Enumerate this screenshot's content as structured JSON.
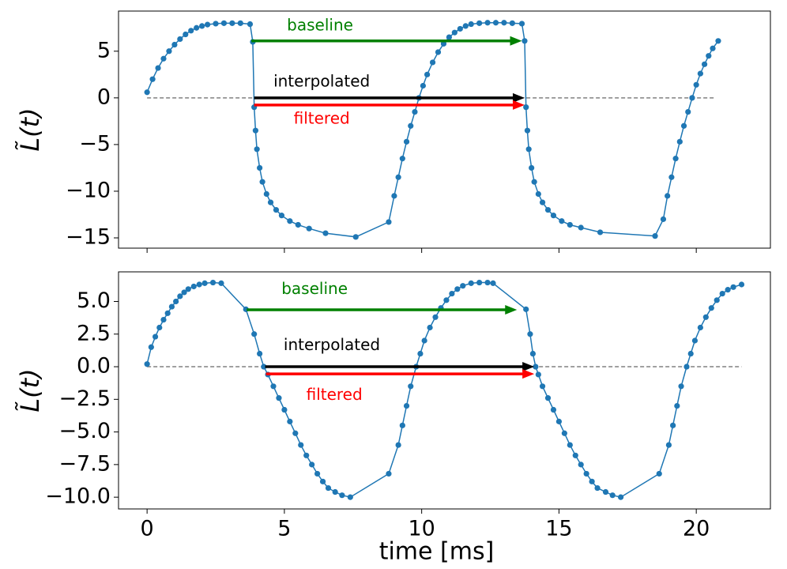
{
  "chart_data": [
    {
      "type": "line",
      "ylabel": "L̃(t)",
      "color": "#1f77b4",
      "x": [
        0,
        0.2,
        0.4,
        0.6,
        0.8,
        1.0,
        1.2,
        1.4,
        1.6,
        1.8,
        2.0,
        2.2,
        2.5,
        2.8,
        3.1,
        3.4,
        3.75,
        3.85,
        3.9,
        3.95,
        4.0,
        4.1,
        4.2,
        4.35,
        4.5,
        4.7,
        4.9,
        5.2,
        5.5,
        5.9,
        6.5,
        7.6,
        8.8,
        9.0,
        9.15,
        9.3,
        9.45,
        9.6,
        9.75,
        9.9,
        10.05,
        10.2,
        10.4,
        10.6,
        10.8,
        11.0,
        11.2,
        11.4,
        11.6,
        11.8,
        12.1,
        12.4,
        12.7,
        13.0,
        13.3,
        13.65,
        13.75,
        13.8,
        13.85,
        13.9,
        14.0,
        14.1,
        14.25,
        14.4,
        14.6,
        14.8,
        15.1,
        15.4,
        15.8,
        16.5,
        18.5,
        18.8,
        18.95,
        19.1,
        19.25,
        19.4,
        19.55,
        19.7,
        19.85,
        20.0,
        20.15,
        20.3,
        20.45,
        20.6,
        20.8
      ],
      "values": [
        0.6,
        2.0,
        3.2,
        4.2,
        5.0,
        5.7,
        6.3,
        6.8,
        7.2,
        7.5,
        7.7,
        7.85,
        7.95,
        8.0,
        8.0,
        8.0,
        7.9,
        6.0,
        -1.0,
        -3.5,
        -5.5,
        -7.5,
        -9.0,
        -10.3,
        -11.2,
        -12.0,
        -12.6,
        -13.2,
        -13.6,
        -14.0,
        -14.5,
        -14.9,
        -13.3,
        -10.5,
        -8.5,
        -6.5,
        -4.7,
        -3.0,
        -1.5,
        0.0,
        1.3,
        2.5,
        3.8,
        4.9,
        5.8,
        6.5,
        7.0,
        7.4,
        7.7,
        7.9,
        8.0,
        8.05,
        8.05,
        8.05,
        8.0,
        7.95,
        6.1,
        -1.0,
        -3.5,
        -5.5,
        -7.5,
        -9.0,
        -10.3,
        -11.2,
        -12.0,
        -12.6,
        -13.2,
        -13.6,
        -13.9,
        -14.4,
        -14.8,
        -13.0,
        -10.5,
        -8.5,
        -6.5,
        -4.7,
        -3.0,
        -1.5,
        0.0,
        1.4,
        2.6,
        3.6,
        4.5,
        5.3,
        6.1
      ],
      "xlim": [
        -1.04,
        22.7
      ],
      "xticks": [
        0,
        5,
        10,
        15,
        20
      ],
      "ylim": [
        -16.1,
        9.3
      ],
      "yticks": [
        {
          "value": 5,
          "label": "5"
        },
        0,
        {
          "value": -5,
          "label": "−5"
        },
        {
          "value": -10,
          "label": "−10"
        },
        {
          "value": -15,
          "label": "−15"
        }
      ],
      "reference_line": {
        "y": 0,
        "xmin": 0,
        "xmax": 20.7,
        "color": "gray"
      },
      "arrows": [
        {
          "text": "baseline",
          "color": "green",
          "start": [
            3.8,
            6.1
          ],
          "end": [
            13.65,
            6.1
          ],
          "text_pos": [
            6.3,
            7.7
          ]
        },
        {
          "text": "interpolated",
          "color": "black",
          "start": [
            3.9,
            0
          ],
          "end": [
            13.75,
            0
          ],
          "text_pos": [
            6.36,
            1.7
          ]
        },
        {
          "text": "filtered",
          "color": "red",
          "start": [
            3.9,
            -0.76
          ],
          "end": [
            13.75,
            -0.76
          ],
          "text_pos": [
            6.36,
            -2.3
          ]
        }
      ]
    },
    {
      "type": "line",
      "ylabel": "L̃(t)",
      "xlabel": "time [ms]",
      "color": "#1f77b4",
      "x": [
        0,
        0.15,
        0.3,
        0.45,
        0.6,
        0.75,
        0.9,
        1.05,
        1.2,
        1.35,
        1.5,
        1.7,
        1.9,
        2.1,
        2.4,
        2.7,
        3.6,
        3.9,
        4.1,
        4.25,
        4.4,
        4.6,
        4.8,
        5.0,
        5.2,
        5.4,
        5.6,
        5.8,
        6.0,
        6.2,
        6.4,
        6.6,
        6.85,
        7.1,
        7.4,
        8.8,
        9.15,
        9.3,
        9.45,
        9.6,
        9.8,
        9.95,
        10.1,
        10.3,
        10.5,
        10.7,
        10.9,
        11.1,
        11.3,
        11.5,
        11.8,
        12.1,
        12.4,
        12.6,
        13.8,
        13.95,
        14.05,
        14.15,
        14.25,
        14.4,
        14.6,
        14.8,
        15.0,
        15.2,
        15.4,
        15.6,
        15.8,
        16.0,
        16.2,
        16.4,
        16.7,
        16.95,
        17.25,
        18.65,
        19.0,
        19.15,
        19.3,
        19.45,
        19.65,
        19.8,
        19.95,
        20.15,
        20.35,
        20.55,
        20.75,
        20.95,
        21.15,
        21.35,
        21.65
      ],
      "values": [
        0.2,
        1.5,
        2.3,
        3.0,
        3.6,
        4.1,
        4.6,
        5.0,
        5.4,
        5.7,
        5.95,
        6.15,
        6.3,
        6.4,
        6.45,
        6.4,
        4.4,
        2.5,
        1.0,
        0.0,
        -0.6,
        -1.5,
        -2.4,
        -3.3,
        -4.2,
        -5.1,
        -6.0,
        -6.8,
        -7.5,
        -8.2,
        -8.8,
        -9.3,
        -9.6,
        -9.85,
        -10.0,
        -8.2,
        -6.0,
        -4.5,
        -3.0,
        -1.5,
        0.0,
        1.0,
        2.0,
        3.0,
        3.8,
        4.5,
        5.1,
        5.6,
        5.95,
        6.2,
        6.4,
        6.45,
        6.45,
        6.4,
        4.4,
        2.5,
        1.0,
        0.0,
        -0.6,
        -1.5,
        -2.4,
        -3.3,
        -4.2,
        -5.1,
        -6.0,
        -6.8,
        -7.5,
        -8.2,
        -8.8,
        -9.3,
        -9.6,
        -9.85,
        -10.0,
        -8.2,
        -6.0,
        -4.5,
        -3.0,
        -1.5,
        0.0,
        1.0,
        2.0,
        3.0,
        3.8,
        4.5,
        5.1,
        5.6,
        5.9,
        6.1,
        6.3
      ],
      "xlim": [
        -1.04,
        22.7
      ],
      "xticks": [
        0,
        5,
        10,
        15,
        20
      ],
      "ylim": [
        -10.9,
        7.27
      ],
      "yticks": [
        {
          "value": 5,
          "label": "5.0"
        },
        2.5,
        {
          "value": 0,
          "label": "0.0"
        },
        {
          "value": -2.5,
          "label": "−2.5"
        },
        {
          "value": -5,
          "label": "−5.0"
        },
        {
          "value": -7.5,
          "label": "−7.5"
        },
        {
          "value": -10,
          "label": "−10.0"
        }
      ],
      "reference_line": {
        "y": 0,
        "xmin": 0,
        "xmax": 21.65,
        "color": "gray"
      },
      "arrows": [
        {
          "text": "baseline",
          "color": "green",
          "start": [
            3.63,
            4.36
          ],
          "end": [
            13.47,
            4.36
          ],
          "text_pos": [
            6.1,
            5.9
          ]
        },
        {
          "text": "interpolated",
          "color": "black",
          "start": [
            4.3,
            0
          ],
          "end": [
            14.1,
            0
          ],
          "text_pos": [
            6.73,
            1.6
          ]
        },
        {
          "text": "filtered",
          "color": "red",
          "start": [
            4.33,
            -0.55
          ],
          "end": [
            14.1,
            -0.55
          ],
          "text_pos": [
            6.82,
            -2.2
          ]
        }
      ]
    }
  ]
}
